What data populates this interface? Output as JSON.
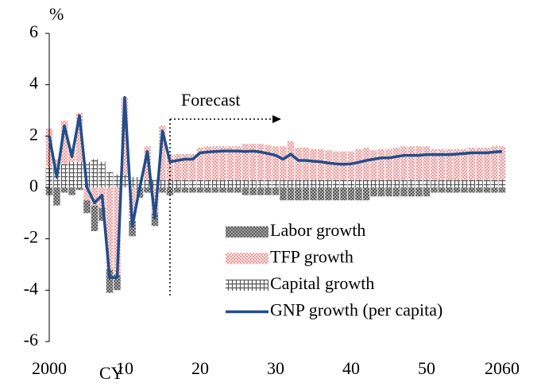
{
  "chart_data": {
    "type": "stacked-bar-line",
    "y_label": "%",
    "x_label": "CY",
    "annotation": "Forecast",
    "x": [
      2000,
      2001,
      2002,
      2003,
      2004,
      2005,
      2006,
      2007,
      2008,
      2009,
      2010,
      2011,
      2012,
      2013,
      2014,
      2015,
      2016,
      2017,
      2018,
      2019,
      2020,
      2021,
      2022,
      2023,
      2024,
      2025,
      2026,
      2027,
      2028,
      2029,
      2030,
      2031,
      2032,
      2033,
      2034,
      2035,
      2036,
      2037,
      2038,
      2039,
      2040,
      2041,
      2042,
      2043,
      2044,
      2045,
      2046,
      2047,
      2048,
      2049,
      2050,
      2051,
      2052,
      2053,
      2054,
      2055,
      2056,
      2057,
      2058,
      2059,
      2060
    ],
    "series": [
      {
        "name": "Labor growth",
        "kind": "bar",
        "pattern": "crosshatch",
        "color": "#333333",
        "values": [
          -0.3,
          -0.7,
          -0.2,
          -0.3,
          -0.1,
          -0.5,
          -1.0,
          -0.5,
          -0.9,
          -0.6,
          0.0,
          -0.6,
          -0.4,
          -0.2,
          -0.5,
          -0.2,
          -0.3,
          -0.2,
          -0.2,
          -0.2,
          -0.2,
          -0.2,
          -0.2,
          -0.2,
          -0.2,
          -0.2,
          -0.3,
          -0.3,
          -0.3,
          -0.3,
          -0.3,
          -0.5,
          -0.5,
          -0.5,
          -0.5,
          -0.5,
          -0.5,
          -0.5,
          -0.5,
          -0.5,
          -0.5,
          -0.5,
          -0.5,
          -0.35,
          -0.35,
          -0.35,
          -0.35,
          -0.35,
          -0.35,
          -0.35,
          -0.35,
          -0.2,
          -0.2,
          -0.2,
          -0.2,
          -0.2,
          -0.2,
          -0.2,
          -0.2,
          -0.2,
          -0.2
        ]
      },
      {
        "name": "TFP growth",
        "kind": "bar",
        "pattern": "dots",
        "color": "#f08080",
        "values": [
          1.5,
          0.3,
          1.7,
          0.5,
          1.9,
          -0.5,
          -0.7,
          -0.8,
          -3.2,
          -3.4,
          3.0,
          -1.3,
          0.0,
          1.3,
          -1.0,
          2.1,
          1.0,
          1.0,
          1.0,
          1.0,
          1.25,
          1.3,
          1.3,
          1.3,
          1.3,
          1.3,
          1.4,
          1.4,
          1.4,
          1.35,
          1.3,
          1.3,
          1.5,
          1.25,
          1.25,
          1.2,
          1.2,
          1.15,
          1.1,
          1.1,
          1.1,
          1.2,
          1.25,
          1.15,
          1.2,
          1.2,
          1.25,
          1.3,
          1.3,
          1.3,
          1.3,
          1.2,
          1.2,
          1.2,
          1.2,
          1.2,
          1.25,
          1.25,
          1.25,
          1.3,
          1.3
        ]
      },
      {
        "name": "Capital growth",
        "kind": "bar",
        "pattern": "grid",
        "color": "#555555",
        "values": [
          0.8,
          0.8,
          0.9,
          1.0,
          1.0,
          1.0,
          1.1,
          1.0,
          0.6,
          0.5,
          0.5,
          0.4,
          0.4,
          0.3,
          0.3,
          0.3,
          0.3,
          0.3,
          0.3,
          0.3,
          0.3,
          0.3,
          0.3,
          0.3,
          0.3,
          0.3,
          0.3,
          0.3,
          0.3,
          0.3,
          0.3,
          0.3,
          0.3,
          0.3,
          0.3,
          0.3,
          0.3,
          0.3,
          0.3,
          0.3,
          0.3,
          0.3,
          0.3,
          0.3,
          0.3,
          0.3,
          0.3,
          0.3,
          0.3,
          0.3,
          0.3,
          0.3,
          0.3,
          0.3,
          0.3,
          0.3,
          0.3,
          0.3,
          0.3,
          0.3,
          0.3
        ]
      },
      {
        "name": "GNP growth (per capita)",
        "kind": "line",
        "color": "#1f4e8c",
        "values": [
          2.0,
          0.4,
          2.4,
          1.2,
          2.8,
          0.0,
          -0.6,
          -0.3,
          -3.5,
          -3.5,
          3.5,
          -1.5,
          0.0,
          1.4,
          -1.2,
          2.2,
          1.0,
          1.05,
          1.1,
          1.1,
          1.35,
          1.38,
          1.4,
          1.42,
          1.42,
          1.42,
          1.4,
          1.42,
          1.38,
          1.32,
          1.25,
          1.1,
          1.3,
          1.05,
          1.05,
          1.02,
          1.0,
          0.95,
          0.92,
          0.9,
          0.92,
          0.98,
          1.05,
          1.1,
          1.15,
          1.15,
          1.2,
          1.25,
          1.25,
          1.25,
          1.28,
          1.28,
          1.28,
          1.28,
          1.3,
          1.32,
          1.35,
          1.35,
          1.35,
          1.38,
          1.4
        ]
      }
    ],
    "xlim": [
      2000,
      2060
    ],
    "xticks": [
      2000,
      {
        "value": 2010,
        "label": "10"
      },
      {
        "value": 2020,
        "label": "20"
      },
      {
        "value": 2030,
        "label": "30"
      },
      {
        "value": 2040,
        "label": "40"
      },
      {
        "value": 2050,
        "label": "50"
      },
      2060
    ],
    "ylim": [
      -6,
      6
    ],
    "yticks": [
      -6,
      -4,
      -2,
      0,
      2,
      4,
      6
    ],
    "grid": false
  }
}
